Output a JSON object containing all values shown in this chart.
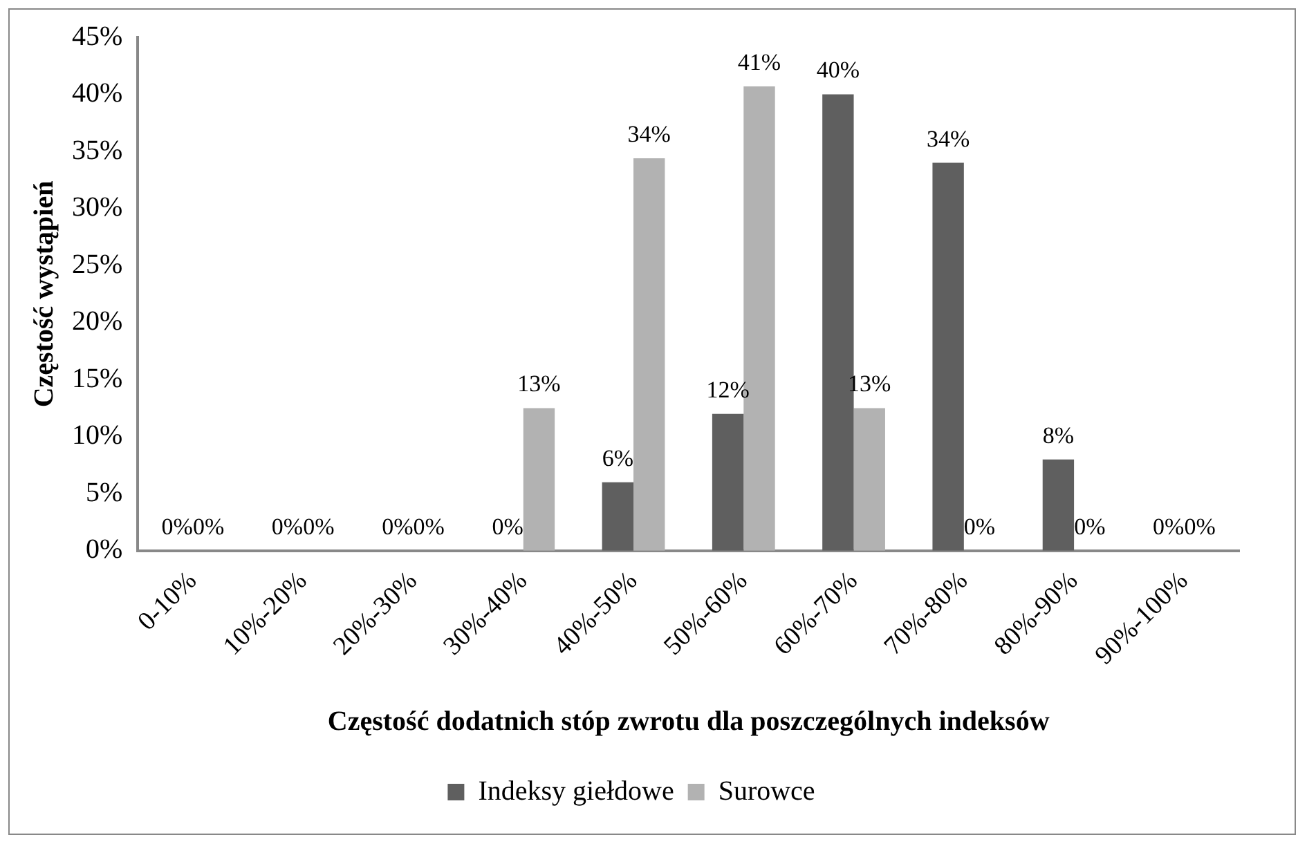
{
  "chart_data": {
    "type": "bar",
    "xlabel": "Częstość dodatnich stóp zwrotu dla poszczególnych indeksów",
    "ylabel": "Częstość wystąpień",
    "categories": [
      "0-10%",
      "10%-20%",
      "20%-30%",
      "30%-40%",
      "40%-50%",
      "50%-60%",
      "60%-70%",
      "70%-80%",
      "80%-90%",
      "90%-100%"
    ],
    "series": [
      {
        "name": "Indeksy giełdowe",
        "color": "#5f5f5f",
        "values": [
          0,
          0,
          0,
          0,
          6,
          12,
          40,
          34,
          8,
          0
        ],
        "value_labels": [
          "0%",
          "0%",
          "0%",
          "0%",
          "6%",
          "12%",
          "40%",
          "34%",
          "8%",
          "0%"
        ]
      },
      {
        "name": "Surowce",
        "color": "#b2b2b2",
        "values": [
          0,
          0,
          0,
          12.5,
          34.4,
          40.7,
          12.5,
          0,
          0,
          0
        ],
        "value_labels": [
          "0%",
          "0%",
          "0%",
          "13%",
          "34%",
          "41%",
          "13%",
          "0%",
          "0%",
          "0%"
        ]
      }
    ],
    "ylim": [
      0,
      45
    ],
    "yticks": [
      {
        "value": 0,
        "label": "0%"
      },
      {
        "value": 5,
        "label": "5%"
      },
      {
        "value": 10,
        "label": "10%"
      },
      {
        "value": 15,
        "label": "15%"
      },
      {
        "value": 20,
        "label": "20%"
      },
      {
        "value": 25,
        "label": "25%"
      },
      {
        "value": 30,
        "label": "30%"
      },
      {
        "value": 35,
        "label": "35%"
      },
      {
        "value": 40,
        "label": "40%"
      },
      {
        "value": 45,
        "label": "45%"
      }
    ],
    "grid": false,
    "legend": "bottom"
  }
}
